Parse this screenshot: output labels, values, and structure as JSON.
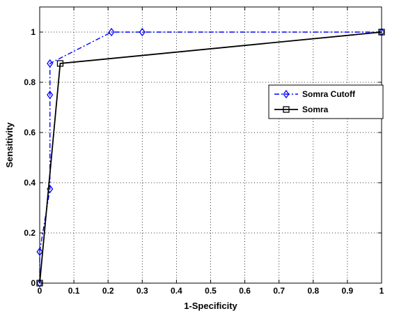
{
  "chart_data": {
    "type": "line",
    "title": "",
    "xlabel": "1-Specificity",
    "ylabel": "Sensitivity",
    "xlim": [
      0,
      1
    ],
    "ylim": [
      0,
      1.1
    ],
    "xticks": [
      "0",
      "0.1",
      "0.2",
      "0.3",
      "0.4",
      "0.5",
      "0.6",
      "0.7",
      "0.8",
      "0.9",
      "1"
    ],
    "yticks": [
      "0",
      "0.2",
      "0.4",
      "0.6",
      "0.8",
      "1"
    ],
    "grid": true,
    "legend_position": "right",
    "series": [
      {
        "name": "Somra Cutoff",
        "color": "#0000ff",
        "line_style": "dash-dot",
        "marker": "diamond",
        "x": [
          0,
          0,
          0.03,
          0.03,
          0.03,
          0.21,
          0.3,
          1
        ],
        "y": [
          0,
          0.125,
          0.375,
          0.75,
          0.875,
          1,
          1,
          1
        ]
      },
      {
        "name": "Somra",
        "color": "#000000",
        "line_style": "solid",
        "marker": "square",
        "x": [
          0,
          0.06,
          1
        ],
        "y": [
          0,
          0.875,
          1
        ]
      }
    ]
  }
}
